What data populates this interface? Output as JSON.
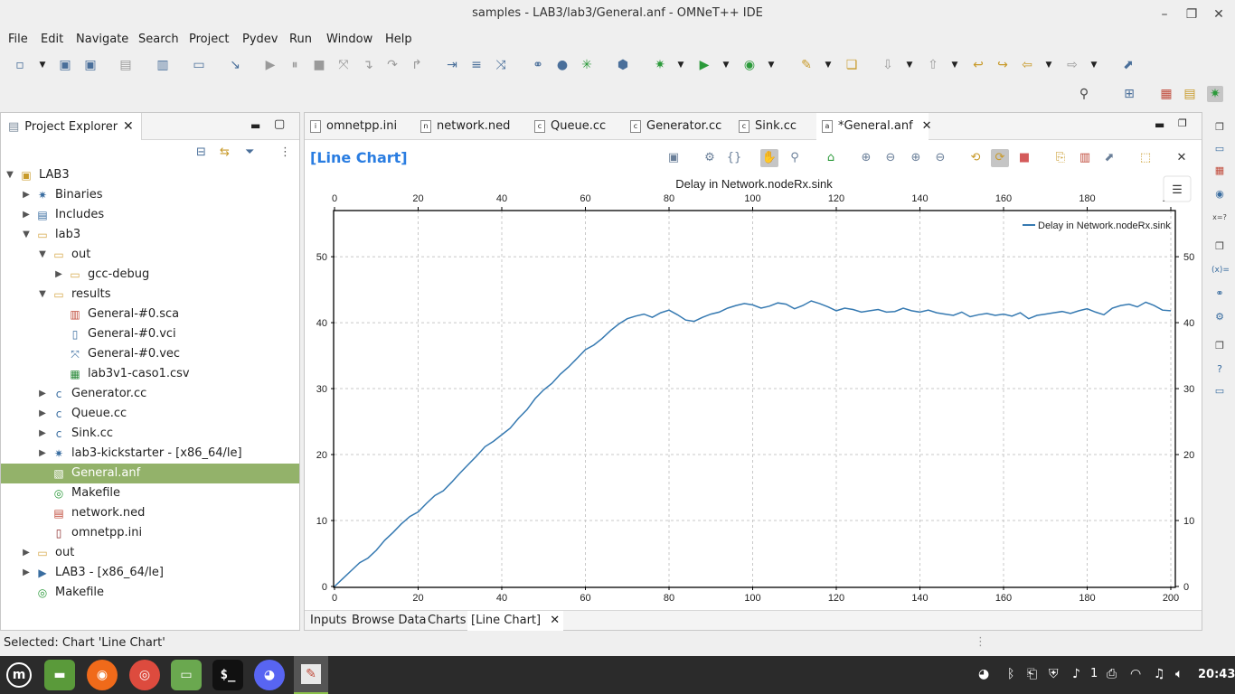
{
  "window": {
    "title": "samples - LAB3/lab3/General.anf - OMNeT++ IDE"
  },
  "menu": [
    "File",
    "Edit",
    "Navigate",
    "Search",
    "Project",
    "Pydev",
    "Run",
    "Window",
    "Help"
  ],
  "explorer": {
    "title": "Project Explorer",
    "tree": [
      {
        "label": "LAB3",
        "depth": 0,
        "arrow": "down",
        "icon": "project-icon"
      },
      {
        "label": "Binaries",
        "depth": 1,
        "arrow": "right",
        "icon": "binaries-icon"
      },
      {
        "label": "Includes",
        "depth": 1,
        "arrow": "right",
        "icon": "includes-icon"
      },
      {
        "label": "lab3",
        "depth": 1,
        "arrow": "down",
        "icon": "folder-icon"
      },
      {
        "label": "out",
        "depth": 2,
        "arrow": "down",
        "icon": "folder-icon"
      },
      {
        "label": "gcc-debug",
        "depth": 3,
        "arrow": "right",
        "icon": "folder-icon"
      },
      {
        "label": "results",
        "depth": 2,
        "arrow": "down",
        "icon": "folder-icon"
      },
      {
        "label": "General-#0.sca",
        "depth": 3,
        "arrow": "",
        "icon": "sca-file-icon"
      },
      {
        "label": "General-#0.vci",
        "depth": 3,
        "arrow": "",
        "icon": "file-icon"
      },
      {
        "label": "General-#0.vec",
        "depth": 3,
        "arrow": "",
        "icon": "vec-file-icon"
      },
      {
        "label": "lab3v1-caso1.csv",
        "depth": 3,
        "arrow": "",
        "icon": "csv-file-icon"
      },
      {
        "label": "Generator.cc",
        "depth": 2,
        "arrow": "right",
        "icon": "cc-file-icon"
      },
      {
        "label": "Queue.cc",
        "depth": 2,
        "arrow": "right",
        "icon": "cc-file-icon"
      },
      {
        "label": "Sink.cc",
        "depth": 2,
        "arrow": "right",
        "icon": "cc-file-icon"
      },
      {
        "label": "lab3-kickstarter - [x86_64/le]",
        "depth": 2,
        "arrow": "right",
        "icon": "executable-icon"
      },
      {
        "label": "General.anf",
        "depth": 2,
        "arrow": "",
        "icon": "anf-file-icon",
        "selected": true
      },
      {
        "label": "Makefile",
        "depth": 2,
        "arrow": "",
        "icon": "makefile-icon"
      },
      {
        "label": "network.ned",
        "depth": 2,
        "arrow": "",
        "icon": "ned-file-icon"
      },
      {
        "label": "omnetpp.ini",
        "depth": 2,
        "arrow": "",
        "icon": "ini-file-icon"
      },
      {
        "label": "out",
        "depth": 1,
        "arrow": "right",
        "icon": "folder-icon"
      },
      {
        "label": "LAB3 - [x86_64/le]",
        "depth": 1,
        "arrow": "right",
        "icon": "run-config-icon"
      },
      {
        "label": "Makefile",
        "depth": 1,
        "arrow": "",
        "icon": "makefile-icon"
      }
    ]
  },
  "editor": {
    "tabs": [
      {
        "label": "omnetpp.ini",
        "glyph": "i"
      },
      {
        "label": "network.ned",
        "glyph": "n"
      },
      {
        "label": "Queue.cc",
        "glyph": "c"
      },
      {
        "label": "Generator.cc",
        "glyph": "c"
      },
      {
        "label": "Sink.cc",
        "glyph": "c"
      },
      {
        "label": "*General.anf",
        "glyph": "a",
        "active": true
      }
    ],
    "chart_heading": "[Line Chart]",
    "bottom_tabs": [
      {
        "label": "Inputs"
      },
      {
        "label": "Browse Data"
      },
      {
        "label": "Charts"
      },
      {
        "label": "[Line Chart]",
        "active": true
      }
    ]
  },
  "chart_data": {
    "type": "line",
    "title": "Delay in Network.nodeRx.sink",
    "xlabel": "",
    "ylabel": "",
    "xlim": [
      0,
      200
    ],
    "ylim": [
      0,
      57
    ],
    "xticks": [
      0,
      20,
      40,
      60,
      80,
      100,
      120,
      140,
      160,
      180,
      200
    ],
    "yticks": [
      0,
      10,
      20,
      30,
      40,
      50
    ],
    "grid": true,
    "legend": "top-right",
    "color": "#3579b1",
    "series": [
      {
        "name": "Delay in Network.nodeRx.sink",
        "x": [
          0,
          2,
          4,
          6,
          8,
          10,
          12,
          14,
          16,
          18,
          20,
          22,
          24,
          26,
          28,
          30,
          32,
          34,
          36,
          38,
          40,
          42,
          44,
          46,
          48,
          50,
          52,
          54,
          56,
          58,
          60,
          62,
          64,
          66,
          68,
          70,
          72,
          74,
          76,
          78,
          80,
          82,
          84,
          86,
          88,
          90,
          92,
          94,
          96,
          98,
          100,
          102,
          104,
          106,
          108,
          110,
          112,
          114,
          116,
          118,
          120,
          122,
          124,
          126,
          128,
          130,
          132,
          134,
          136,
          138,
          140,
          142,
          144,
          146,
          148,
          150,
          152,
          154,
          156,
          158,
          160,
          162,
          164,
          166,
          168,
          170,
          172,
          174,
          176,
          178,
          180,
          182,
          184,
          186,
          188,
          190,
          192,
          194,
          196,
          198,
          200
        ],
        "y": [
          0,
          1.2,
          2.4,
          3.6,
          4.3,
          5.5,
          7,
          8.2,
          9.5,
          10.6,
          11.3,
          12.6,
          13.8,
          14.5,
          15.8,
          17.2,
          18.5,
          19.8,
          21.2,
          22,
          23,
          24,
          25.5,
          26.8,
          28.5,
          29.8,
          30.8,
          32.2,
          33.3,
          34.6,
          35.9,
          36.6,
          37.6,
          38.8,
          39.8,
          40.6,
          41,
          41.3,
          40.8,
          41.5,
          41.9,
          41.2,
          40.4,
          40.2,
          40.8,
          41.3,
          41.6,
          42.2,
          42.6,
          42.9,
          42.7,
          42.2,
          42.5,
          43,
          42.8,
          42.1,
          42.6,
          43.3,
          42.9,
          42.4,
          41.8,
          42.2,
          42,
          41.6,
          41.8,
          42,
          41.6,
          41.7,
          42.2,
          41.8,
          41.6,
          41.9,
          41.5,
          41.3,
          41.1,
          41.6,
          40.9,
          41.2,
          41.4,
          41.1,
          41.3,
          41,
          41.5,
          40.6,
          41.1,
          41.3,
          41.5,
          41.7,
          41.4,
          41.8,
          42.1,
          41.6,
          41.2,
          42.2,
          42.6,
          42.8,
          42.4,
          43.1,
          42.6,
          41.9,
          41.8
        ]
      }
    ]
  },
  "status": {
    "text": "Selected: Chart 'Line Chart'"
  },
  "taskbar": {
    "clock": "20:43",
    "tray_count": "1"
  }
}
